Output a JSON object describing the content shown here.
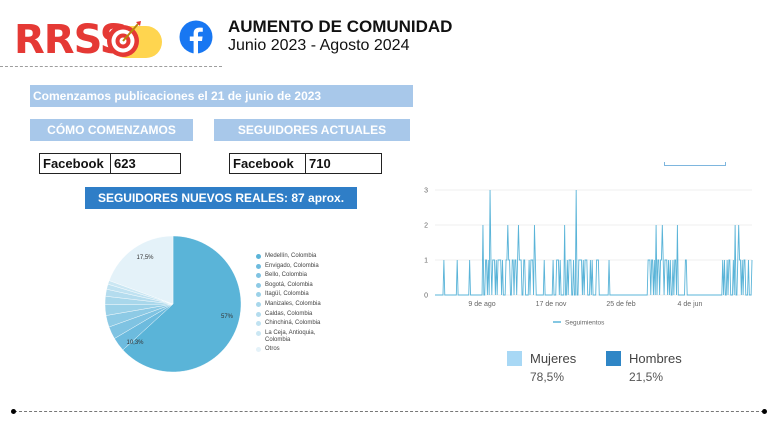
{
  "header": {
    "logo_text": "RRSS",
    "title": "AUMENTO DE COMUNIDAD",
    "subtitle": "Junio 2023 - Agosto 2024"
  },
  "banners": {
    "start_note": "Comenzamos publicaciones el 21 de junio de 2023",
    "how_we_started": "CÓMO COMENZAMOS",
    "current_followers": "SEGUIDORES ACTUALES",
    "new_real_followers": "SEGUIDORES NUEVOS REALES: 87 aprox."
  },
  "stats": {
    "start": {
      "platform": "Facebook",
      "value": "623"
    },
    "current": {
      "platform": "Facebook",
      "value": "710"
    }
  },
  "colors": {
    "accent": "#2f7ec7",
    "banner": "#a8c8ea",
    "series": "#5ab4d8",
    "brand_red": "#e53935"
  },
  "chart_data": [
    {
      "type": "pie",
      "slices": [
        {
          "label": "Medellín, Colombia",
          "value": 57,
          "color": "#5ab4d8"
        },
        {
          "label": "Envigado, Colombia",
          "value": 3,
          "color": "#6dbbde"
        },
        {
          "label": "Bello, Colombia",
          "value": 2.7,
          "color": "#7fc3e2"
        },
        {
          "label": "Bogotá, Colombia",
          "value": 2.5,
          "color": "#8dcae5"
        },
        {
          "label": "Itagüí, Colombia",
          "value": 2.3,
          "color": "#9bd1e8"
        },
        {
          "label": "Manizales, Colombia",
          "value": 1.8,
          "color": "#a8d7eb"
        },
        {
          "label": "Caldas, Colombia",
          "value": 1.5,
          "color": "#b4dcee"
        },
        {
          "label": "Chinchiná, Colombia",
          "value": 1.1,
          "color": "#c0e2f1"
        },
        {
          "label": "La Ceja, Antioquia, Colombia",
          "value": 0.8,
          "color": "#cbe7f3"
        },
        {
          "label": "Otros",
          "value": 17.5,
          "color": "#e4f2f9"
        }
      ],
      "visible_labels": [
        "57%",
        "10,3%",
        "17,5%"
      ]
    },
    {
      "type": "line",
      "y_ticks": [
        "0",
        "1",
        "2",
        "3"
      ],
      "ylim": [
        0,
        3
      ],
      "x_ticks": [
        "9 de ago",
        "17 de nov",
        "25 de feb",
        "4 de jun"
      ],
      "series": [
        {
          "name": "Seguimientos",
          "values": [
            0,
            0,
            0,
            0,
            0,
            0,
            0,
            0,
            0,
            0,
            1,
            0,
            0,
            0,
            0,
            0,
            0,
            0,
            0,
            0,
            0,
            0,
            0,
            0,
            0,
            1,
            0,
            0,
            0,
            0,
            0,
            0,
            0,
            0,
            0,
            0,
            0,
            0,
            0,
            1,
            0,
            0,
            0,
            0,
            0,
            0,
            0,
            0,
            0,
            0,
            0,
            0,
            0,
            0,
            2,
            0,
            0,
            1,
            1,
            0,
            1,
            0,
            3,
            1,
            0,
            1,
            1,
            1,
            0,
            1,
            0,
            1,
            1,
            1,
            1,
            0,
            1,
            0,
            0,
            0,
            1,
            1,
            2,
            1,
            1,
            0,
            0,
            1,
            1,
            0,
            1,
            1,
            0,
            1,
            2,
            1,
            1,
            1,
            0,
            0,
            1,
            1,
            0,
            0,
            0,
            0,
            1,
            0,
            1,
            1,
            1,
            0,
            2,
            1,
            0,
            0,
            0,
            0,
            0,
            0,
            0,
            0,
            0,
            1,
            0,
            0,
            0,
            0,
            0,
            0,
            0,
            0,
            0,
            1,
            0,
            0,
            0,
            1,
            1,
            1,
            0,
            1,
            0,
            0,
            0,
            0,
            2,
            0,
            0,
            1,
            0,
            1,
            1,
            1,
            0,
            0,
            1,
            0,
            0,
            3,
            0,
            0,
            1,
            1,
            1,
            1,
            0,
            1,
            0,
            1,
            1,
            1,
            0,
            0,
            0,
            1,
            0,
            1,
            0,
            0,
            0,
            0,
            1,
            1,
            1,
            0,
            0,
            0,
            0,
            0,
            0,
            0,
            0,
            0,
            0,
            0,
            1,
            0,
            0,
            0,
            0,
            0,
            0,
            0,
            0,
            0,
            0,
            0,
            0,
            0,
            0,
            0,
            0,
            0,
            0,
            0,
            0,
            0,
            0,
            0,
            0,
            0,
            0,
            0,
            0,
            0,
            0,
            0,
            0,
            0,
            0,
            0,
            0,
            0,
            0,
            0,
            0,
            0,
            0,
            0,
            1,
            1,
            1,
            0,
            1,
            1,
            0,
            1,
            0,
            2,
            0,
            1,
            1,
            0,
            1,
            1,
            2,
            1,
            0,
            1,
            1,
            1,
            0,
            1,
            0,
            1,
            0,
            0,
            1,
            0,
            1,
            1,
            0,
            2,
            0,
            0,
            0,
            0,
            0,
            0,
            0,
            0,
            1,
            1,
            0,
            0,
            0,
            0,
            0,
            0,
            0,
            0,
            0,
            0,
            0,
            0,
            0,
            0,
            0,
            0,
            0,
            0,
            0,
            0,
            0,
            0,
            0,
            0,
            0,
            0,
            0,
            0,
            0,
            0,
            0,
            0,
            0,
            0,
            0,
            0,
            0,
            0,
            0,
            0,
            1,
            0,
            1,
            0,
            0,
            1,
            0,
            1,
            1,
            0,
            0,
            0,
            1,
            0,
            2,
            0,
            0,
            1,
            2,
            1,
            1,
            0,
            1,
            0,
            1,
            1,
            0,
            0,
            0,
            1,
            0,
            0,
            0,
            1
          ]
        }
      ]
    },
    {
      "type": "pie",
      "slices": [
        {
          "label": "Mujeres",
          "value": 78.5,
          "display": "78,5%",
          "color": "#a8d8f5"
        },
        {
          "label": "Hombres",
          "value": 21.5,
          "display": "21,5%",
          "color": "#2f86c6"
        }
      ]
    }
  ]
}
